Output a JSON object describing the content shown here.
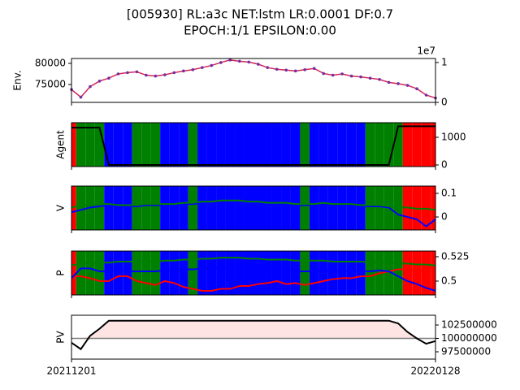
{
  "title": [
    "[005930] RL:a3c NET:lstm LR:0.0001 DF:0.7",
    "EPOCH:1/1 EPSILON:0.00"
  ],
  "actions": {
    "values": [
      0,
      2,
      2,
      2,
      1,
      1,
      1,
      2,
      2,
      2,
      1,
      1,
      1,
      2,
      1,
      1,
      1,
      1,
      1,
      1,
      1,
      1,
      1,
      1,
      1,
      2,
      1,
      1,
      1,
      1,
      1,
      1,
      2,
      2,
      2,
      2,
      0,
      0,
      0,
      0
    ],
    "colors": [
      "red",
      "blue",
      "green"
    ]
  },
  "chart_data": [
    {
      "type": "line",
      "ylabel": "Env.",
      "ylim": [
        70770,
        81150
      ],
      "yticks": [
        75000,
        80000
      ],
      "ytick_side": "left",
      "y2lim": [
        0,
        1.1
      ],
      "y2ticks": [
        0,
        1
      ],
      "y2_offset_label": "1e7",
      "series": [
        {
          "color": "#d6245a",
          "values": [
            73800,
            72000,
            74500,
            75800,
            76500,
            77500,
            77800,
            78000,
            77200,
            77000,
            77300,
            77800,
            78200,
            78500,
            79000,
            79500,
            80200,
            80800,
            80500,
            80300,
            79800,
            79000,
            78600,
            78400,
            78200,
            78500,
            78800,
            77600,
            77200,
            77500,
            77000,
            76800,
            76500,
            76200,
            75500,
            75200,
            74800,
            74000,
            72500,
            71800
          ]
        }
      ]
    },
    {
      "type": "line",
      "ylabel": "Agent",
      "ylim": [
        -59,
        1529
      ],
      "yticks": [
        0,
        1000
      ],
      "ytick_side": "right",
      "background": true,
      "series": [
        {
          "color": "#000000",
          "values": [
            1350,
            1350,
            1350,
            1350,
            0,
            0,
            0,
            0,
            0,
            0,
            0,
            0,
            0,
            0,
            0,
            0,
            0,
            0,
            0,
            0,
            0,
            0,
            0,
            0,
            0,
            0,
            0,
            0,
            0,
            0,
            0,
            0,
            0,
            0,
            0,
            1400,
            1400,
            1400,
            1400,
            1400
          ]
        }
      ]
    },
    {
      "type": "line",
      "ylabel": "V",
      "ylim": [
        -0.055,
        0.131
      ],
      "yticks": [
        0.0,
        0.1
      ],
      "ytick_side": "right",
      "background": true,
      "series": [
        {
          "color": "#0000ff",
          "values": [
            0.02,
            0.03,
            0.04,
            0.045,
            0.05,
            0.045,
            0.045,
            0.045,
            0.05,
            0.05,
            0.05,
            0.05,
            0.055,
            0.055,
            0.06,
            0.06,
            0.065,
            0.065,
            0.065,
            0.06,
            0.06,
            0.055,
            0.055,
            0.055,
            0.05,
            0.05,
            0.05,
            0.055,
            0.05,
            0.05,
            0.05,
            0.045,
            0.045,
            0.045,
            0.04,
            0.01,
            0.0,
            -0.01,
            -0.04,
            -0.01
          ]
        },
        {
          "color": "#008000",
          "values": [
            0.04,
            0.05,
            0.05,
            0.055,
            0.055,
            0.05,
            0.05,
            0.05,
            0.055,
            0.055,
            0.055,
            0.055,
            0.06,
            0.06,
            0.065,
            0.065,
            0.07,
            0.07,
            0.07,
            0.065,
            0.065,
            0.06,
            0.06,
            0.06,
            0.055,
            0.055,
            0.055,
            0.06,
            0.055,
            0.055,
            0.055,
            0.05,
            0.05,
            0.05,
            0.045,
            0.04,
            0.04,
            0.035,
            0.035,
            0.03
          ]
        }
      ]
    },
    {
      "type": "line",
      "ylabel": "P",
      "ylim": [
        0.4858,
        0.5308
      ],
      "yticks": [
        0.5,
        0.525
      ],
      "ytick_side": "right",
      "background": true,
      "series": [
        {
          "color": "#ff0000",
          "values": [
            0.505,
            0.505,
            0.503,
            0.5,
            0.5,
            0.505,
            0.505,
            0.5,
            0.498,
            0.496,
            0.5,
            0.498,
            0.494,
            0.492,
            0.49,
            0.49,
            0.492,
            0.492,
            0.495,
            0.495,
            0.497,
            0.498,
            0.5,
            0.497,
            0.498,
            0.496,
            0.498,
            0.5,
            0.502,
            0.503,
            0.503,
            0.505,
            0.505,
            0.508,
            0.51,
            0.512,
            0.512,
            0.51,
            0.512,
            0.515
          ]
        },
        {
          "color": "#0000ff",
          "values": [
            0.503,
            0.513,
            0.513,
            0.51,
            0.51,
            0.512,
            0.51,
            0.51,
            0.51,
            0.51,
            0.511,
            0.511,
            0.512,
            0.512,
            0.513,
            0.513,
            0.513,
            0.513,
            0.512,
            0.512,
            0.511,
            0.511,
            0.51,
            0.51,
            0.51,
            0.51,
            0.51,
            0.51,
            0.51,
            0.51,
            0.51,
            0.51,
            0.51,
            0.511,
            0.51,
            0.505,
            0.5,
            0.497,
            0.493,
            0.49
          ]
        },
        {
          "color": "#008000",
          "values": [
            0.516,
            0.518,
            0.518,
            0.519,
            0.519,
            0.52,
            0.52,
            0.52,
            0.52,
            0.52,
            0.521,
            0.521,
            0.522,
            0.522,
            0.523,
            0.523,
            0.524,
            0.524,
            0.524,
            0.523,
            0.523,
            0.522,
            0.522,
            0.522,
            0.521,
            0.521,
            0.521,
            0.521,
            0.52,
            0.52,
            0.52,
            0.52,
            0.519,
            0.519,
            0.519,
            0.518,
            0.518,
            0.517,
            0.517,
            0.516
          ]
        }
      ]
    },
    {
      "type": "line",
      "ylabel": "PV",
      "ylim": [
        96136000,
        104318000
      ],
      "yticks": [
        97500000,
        100000000,
        102500000
      ],
      "ytick_side": "right",
      "baseline": 100000000,
      "fill": "#ffe4e4",
      "xlim": [
        0,
        39
      ],
      "xticks": [
        {
          "value": 0,
          "label": "20211201"
        },
        {
          "value": 39,
          "label": "20220128"
        }
      ],
      "series": [
        {
          "color": "#000000",
          "values": [
            99200000,
            98000000,
            100500000,
            101800000,
            103300000,
            103300000,
            103300000,
            103300000,
            103300000,
            103300000,
            103300000,
            103300000,
            103300000,
            103300000,
            103300000,
            103300000,
            103300000,
            103300000,
            103300000,
            103300000,
            103300000,
            103300000,
            103300000,
            103300000,
            103300000,
            103300000,
            103300000,
            103300000,
            103300000,
            103300000,
            103300000,
            103300000,
            103300000,
            103300000,
            103300000,
            102800000,
            101200000,
            100000000,
            99000000,
            99500000
          ]
        }
      ]
    }
  ]
}
